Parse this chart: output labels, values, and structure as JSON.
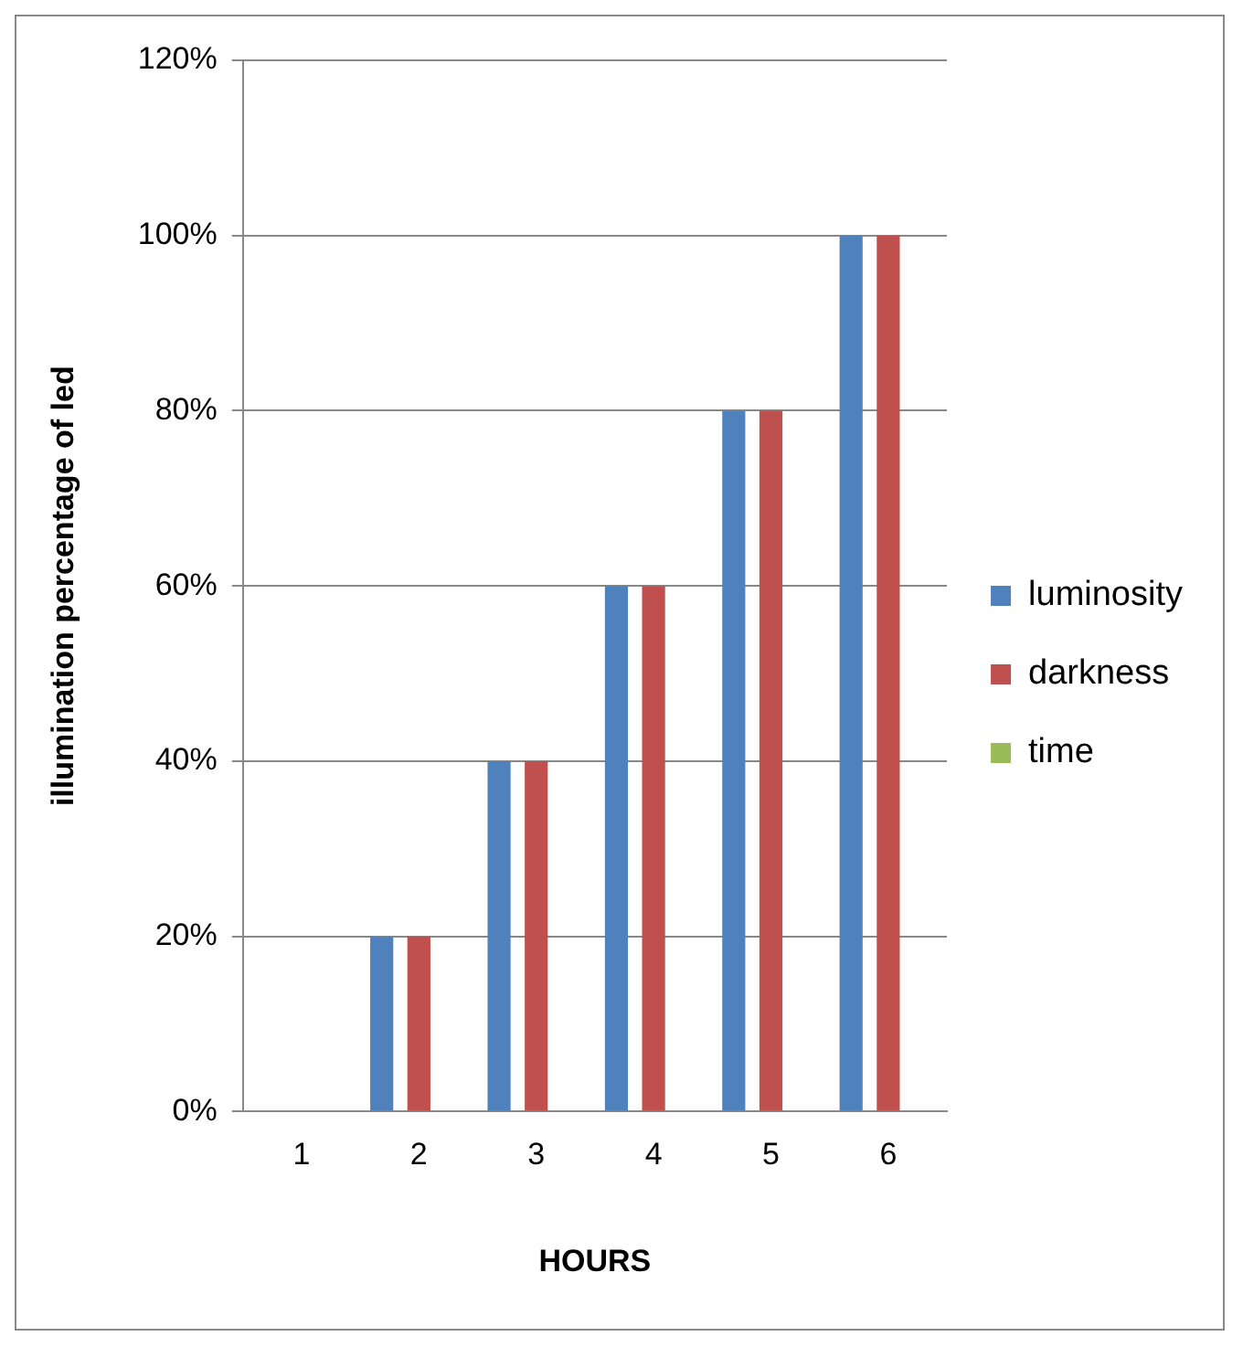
{
  "chart_data": {
    "type": "bar",
    "xlabel": "HOURS",
    "ylabel": "illumination percentage of led",
    "categories": [
      "1",
      "2",
      "3",
      "4",
      "5",
      "6"
    ],
    "series": [
      {
        "name": "luminosity",
        "color": "#4f81bd",
        "values": [
          0,
          20,
          40,
          60,
          80,
          100
        ]
      },
      {
        "name": "darkness",
        "color": "#c0504d",
        "values": [
          0,
          20,
          40,
          60,
          80,
          100
        ]
      },
      {
        "name": "time",
        "color": "#9bbb59",
        "values": [
          0,
          0,
          0,
          0,
          0,
          0
        ]
      }
    ],
    "ylim": [
      0,
      120
    ],
    "yticks": [
      {
        "value": 0,
        "label": "0%"
      },
      {
        "value": 20,
        "label": "20%"
      },
      {
        "value": 40,
        "label": "40%"
      },
      {
        "value": 60,
        "label": "60%"
      },
      {
        "value": 80,
        "label": "80%"
      },
      {
        "value": 100,
        "label": "100%"
      },
      {
        "value": 120,
        "label": "120%"
      }
    ],
    "grid": "y",
    "legend": "right"
  }
}
